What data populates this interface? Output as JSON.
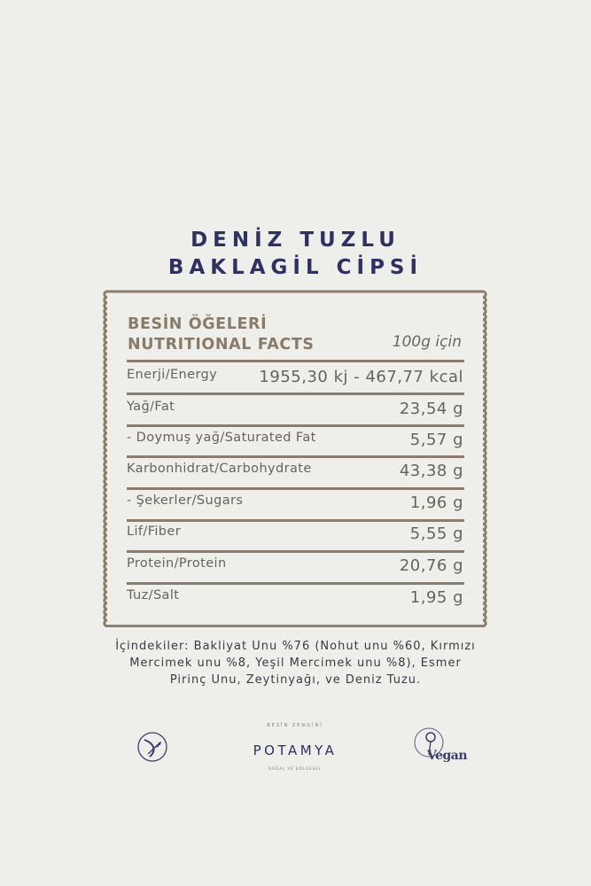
{
  "product": {
    "title_line1": "DENİZ TUZLU",
    "title_line2": "BAKLAGİL CİPSİ"
  },
  "table": {
    "heading_tr": "BESİN ÖĞELERİ",
    "heading_en": "NUTRITIONAL FACTS",
    "per": "100g için",
    "rows": [
      {
        "label": "Enerji/Energy",
        "value": "1955,30 kj - 467,77 kcal"
      },
      {
        "label": "Yağ/Fat",
        "value": "23,54 g"
      },
      {
        "label": " - Doymuş yağ/Saturated Fat",
        "value": "5,57 g"
      },
      {
        "label": "Karbonhidrat/Carbohydrate",
        "value": "43,38 g"
      },
      {
        "label": " - Şekerler/Sugars",
        "value": "1,96 g"
      },
      {
        "label": "Lif/Fiber",
        "value": "5,55 g"
      },
      {
        "label": "Protein/Protein",
        "value": "20,76 g"
      },
      {
        "label": "Tuz/Salt",
        "value": "1,95 g"
      }
    ]
  },
  "ingredients": {
    "line1": "İçindekiler: Bakliyat Unu %76 (Nohut unu %60, Kırmızı",
    "line2": "Mercimek unu %8, Yeşil Mercimek unu %8), Esmer",
    "line3": "Pirinç Unu, Zeytinyağı, ve Deniz Tuzu."
  },
  "logos": {
    "gluten_free_icon": "gluten-free-icon",
    "brand": "POTAMYA",
    "brand_arc": "BESİN ZENGİNİ",
    "brand_sub": "DOĞAL VE BÖLGESEL",
    "vegan": "Vegan"
  },
  "colors": {
    "title": "#2f3163",
    "frame": "#8c7d6b",
    "background": "#eeefeb"
  }
}
